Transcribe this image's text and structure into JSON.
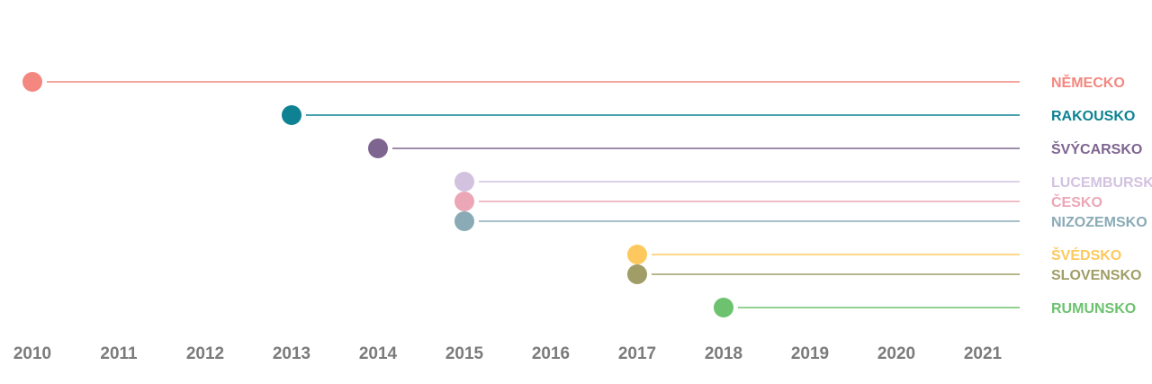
{
  "chart_data": {
    "type": "timeline",
    "title": "",
    "xlabel": "",
    "ylabel": "",
    "xlim": [
      2010,
      2021
    ],
    "ticks": [
      "2010",
      "2011",
      "2012",
      "2013",
      "2014",
      "2015",
      "2016",
      "2017",
      "2018",
      "2019",
      "2020",
      "2021"
    ],
    "grid": false,
    "series": [
      {
        "name": "NĚMECKO",
        "start": 2010,
        "color": "#f4877f"
      },
      {
        "name": "RAKOUSKO",
        "start": 2013,
        "color": "#0e8292"
      },
      {
        "name": "ŠVÝCARSKO",
        "start": 2014,
        "color": "#7e6590"
      },
      {
        "name": "LUCEMBURSKO",
        "start": 2015,
        "color": "#d2c2e0"
      },
      {
        "name": "ČESKO",
        "start": 2015,
        "color": "#eba7b6"
      },
      {
        "name": "NIZOZEMSKO",
        "start": 2015,
        "color": "#8aaab6"
      },
      {
        "name": "ŠVÉDSKO",
        "start": 2017,
        "color": "#fdc95e"
      },
      {
        "name": "SLOVENSKO",
        "start": 2017,
        "color": "#a09d66"
      },
      {
        "name": "RUMUNSKO",
        "start": 2018,
        "color": "#6cc26e"
      }
    ]
  }
}
